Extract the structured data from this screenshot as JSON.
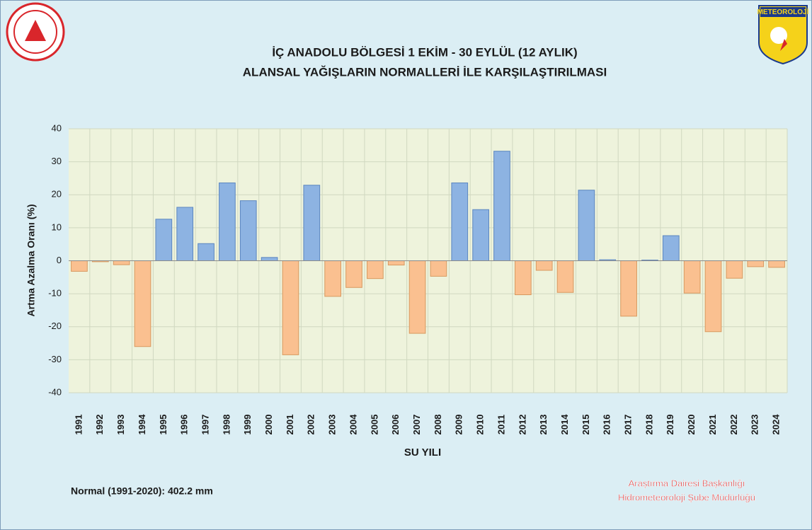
{
  "chart_data": {
    "type": "bar",
    "title": "İÇ ANADOLU BÖLGESİ  1 EKİM - 30 EYLÜL (12 AYLIK)",
    "subtitle": "ALANSAL YAĞIŞLARIN NORMALLERİ İLE KARŞILAŞTIRILMASI",
    "y_label": "Artma Azalma Oranı (%)",
    "x_label": "SU YILI",
    "note": "Normal (1991-2020):  402.2 mm",
    "credit": [
      "Araştırma Dairesi Başkanlığı",
      "Hidrometeoroloji Şube Müdürlüğü"
    ],
    "logo_text": "METEOROLOJİ",
    "categories": [
      "1991",
      "1992",
      "1993",
      "1994",
      "1995",
      "1996",
      "1997",
      "1998",
      "1999",
      "2000",
      "2001",
      "2002",
      "2003",
      "2004",
      "2005",
      "2006",
      "2007",
      "2008",
      "2009",
      "2010",
      "2011",
      "2012",
      "2013",
      "2014",
      "2015",
      "2016",
      "2017",
      "2018",
      "2019",
      "2020",
      "2021",
      "2022",
      "2023",
      "2024"
    ],
    "values": [
      -3.2,
      -0.3,
      -1.2,
      -26,
      12.6,
      16.2,
      5.2,
      23.6,
      18.2,
      1.0,
      -28.5,
      22.9,
      -10.8,
      -8.1,
      -5.4,
      -1.3,
      -22,
      -4.7,
      23.6,
      15.5,
      33.2,
      -10.3,
      -2.9,
      -9.6,
      21.4,
      0.3,
      -16.8,
      0.2,
      7.6,
      -9.8,
      -21.5,
      -5.3,
      -1.8,
      -2.0
    ],
    "color_positive": "#8db3e2",
    "color_negative": "#fac090",
    "ylim": [
      -40,
      40
    ],
    "yticks": [
      -40,
      -30,
      -20,
      -10,
      0,
      10,
      20,
      30,
      40
    ],
    "grid": true
  }
}
